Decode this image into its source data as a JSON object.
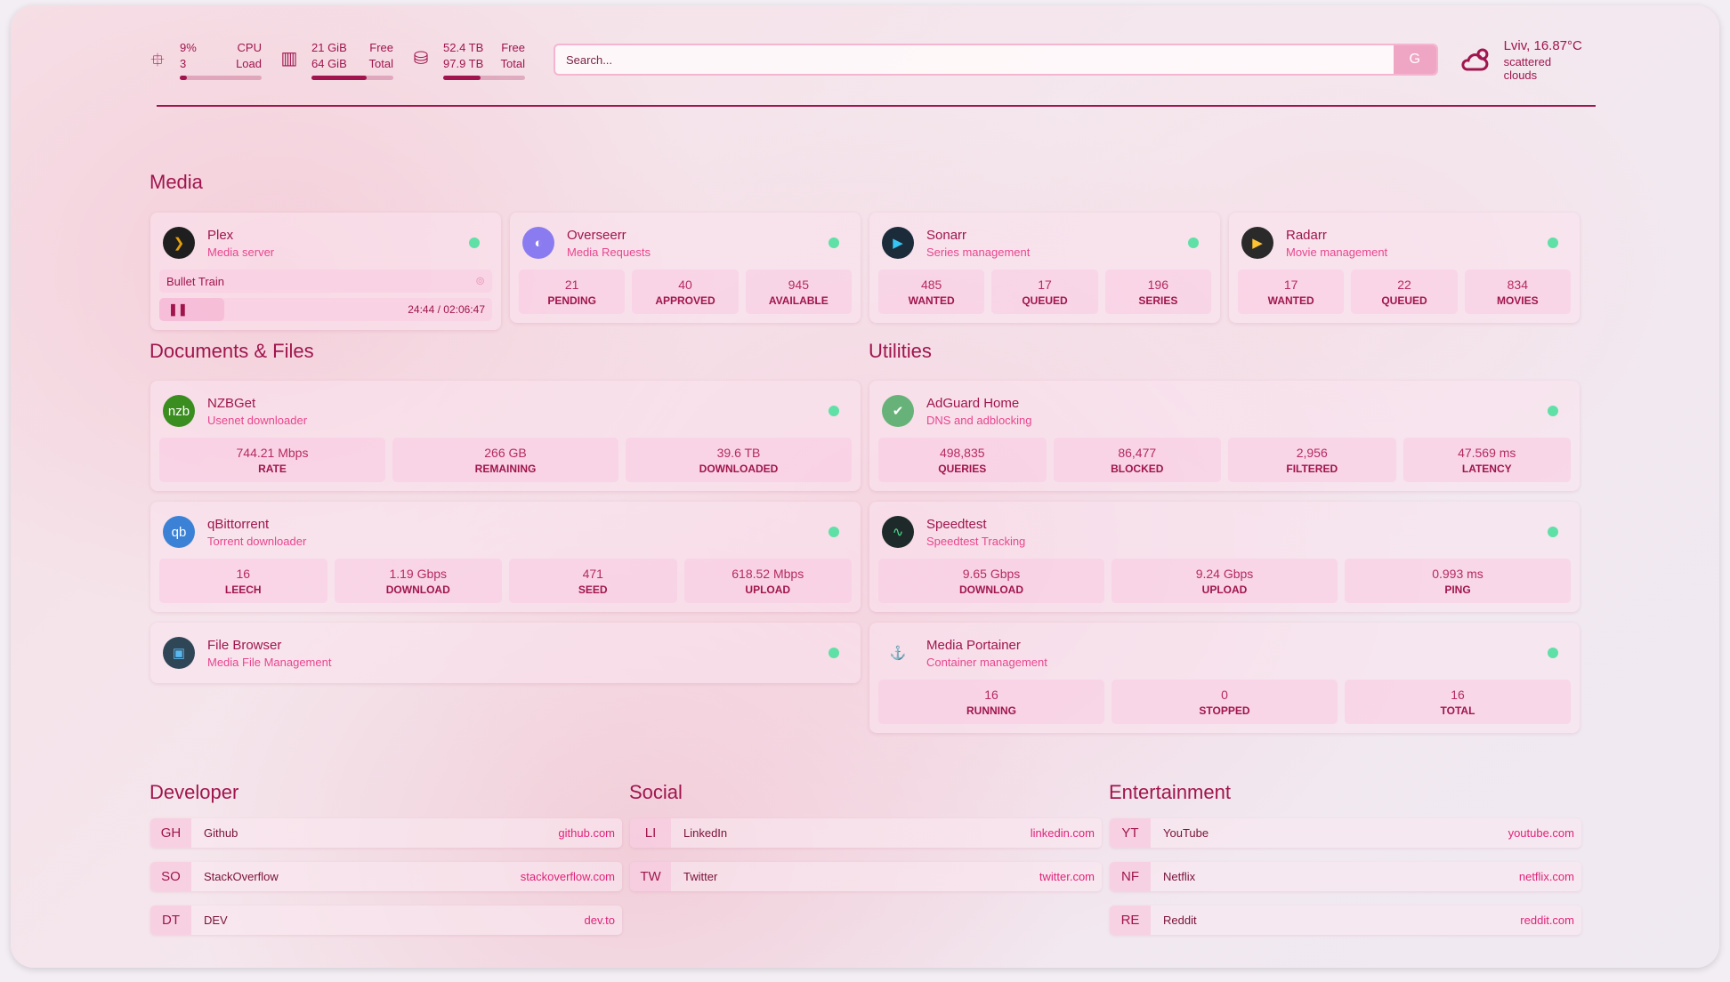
{
  "resources": [
    {
      "icon": "cpu-icon",
      "glyph": "⯐",
      "r1": [
        "9%",
        "CPU"
      ],
      "r2": [
        "3",
        "Load"
      ],
      "fill": 9
    },
    {
      "icon": "memory-icon",
      "glyph": "▥",
      "r1": [
        "21 GiB",
        "Free"
      ],
      "r2": [
        "64 GiB",
        "Total"
      ],
      "fill": 67
    },
    {
      "icon": "disk-icon",
      "glyph": "⛁",
      "r1": [
        "52.4 TB",
        "Free"
      ],
      "r2": [
        "97.9 TB",
        "Total"
      ],
      "fill": 46
    }
  ],
  "search": {
    "placeholder": "Search...",
    "button": "G"
  },
  "weather": {
    "location": "Lviv, 16.87°C",
    "condition": "scattered clouds"
  },
  "sections": {
    "media": "Media",
    "docs": "Documents & Files",
    "utilities": "Utilities",
    "developer": "Developer",
    "social": "Social",
    "entertainment": "Entertainment"
  },
  "colors": {
    "accent": "#a0154d",
    "subtitle": "#e8468f",
    "status_ok": "#5fe0a6"
  },
  "media": [
    {
      "name": "Plex",
      "desc": "Media server",
      "logo": "❯",
      "logo_bg": "#1f1f1f",
      "logo_fg": "#e5a00d",
      "now_playing": {
        "title": "Bullet Train",
        "time": "24:44 / 02:06:47",
        "progress": 19.5
      }
    },
    {
      "name": "Overseerr",
      "desc": "Media Requests",
      "logo": "◐",
      "logo_bg": "#8b7bf0",
      "logo_fg": "#fff",
      "stats": [
        {
          "v": "21",
          "l": "PENDING"
        },
        {
          "v": "40",
          "l": "APPROVED"
        },
        {
          "v": "945",
          "l": "AVAILABLE"
        }
      ]
    },
    {
      "name": "Sonarr",
      "desc": "Series management",
      "logo": "▶",
      "logo_bg": "#1b2b3a",
      "logo_fg": "#35c5f4",
      "stats": [
        {
          "v": "485",
          "l": "WANTED"
        },
        {
          "v": "17",
          "l": "QUEUED"
        },
        {
          "v": "196",
          "l": "SERIES"
        }
      ]
    },
    {
      "name": "Radarr",
      "desc": "Movie management",
      "logo": "▶",
      "logo_bg": "#2a2a2a",
      "logo_fg": "#ffc230",
      "stats": [
        {
          "v": "17",
          "l": "WANTED"
        },
        {
          "v": "22",
          "l": "QUEUED"
        },
        {
          "v": "834",
          "l": "MOVIES"
        }
      ]
    }
  ],
  "docs": [
    {
      "name": "NZBGet",
      "desc": "Usenet downloader",
      "logo": "nzb",
      "logo_bg": "#3a8d1f",
      "logo_fg": "#fff",
      "stats": [
        {
          "v": "744.21 Mbps",
          "l": "RATE"
        },
        {
          "v": "266 GB",
          "l": "REMAINING"
        },
        {
          "v": "39.6 TB",
          "l": "DOWNLOADED"
        }
      ]
    },
    {
      "name": "qBittorrent",
      "desc": "Torrent downloader",
      "logo": "qb",
      "logo_bg": "#3b82d6",
      "logo_fg": "#fff",
      "stats": [
        {
          "v": "16",
          "l": "LEECH"
        },
        {
          "v": "1.19 Gbps",
          "l": "DOWNLOAD"
        },
        {
          "v": "471",
          "l": "SEED"
        },
        {
          "v": "618.52 Mbps",
          "l": "UPLOAD"
        }
      ]
    },
    {
      "name": "File Browser",
      "desc": "Media File Management",
      "logo": "▣",
      "logo_bg": "#2f4656",
      "logo_fg": "#5ab8f0"
    }
  ],
  "utilities": [
    {
      "name": "AdGuard Home",
      "desc": "DNS and adblocking",
      "logo": "✔",
      "logo_bg": "#67b279",
      "logo_fg": "#fff",
      "stats": [
        {
          "v": "498,835",
          "l": "QUERIES"
        },
        {
          "v": "86,477",
          "l": "BLOCKED"
        },
        {
          "v": "2,956",
          "l": "FILTERED"
        },
        {
          "v": "47.569 ms",
          "l": "LATENCY"
        }
      ]
    },
    {
      "name": "Speedtest",
      "desc": "Speedtest Tracking",
      "logo": "∿",
      "logo_bg": "#1e2a2a",
      "logo_fg": "#4ee08f",
      "stats": [
        {
          "v": "9.65 Gbps",
          "l": "DOWNLOAD"
        },
        {
          "v": "9.24 Gbps",
          "l": "UPLOAD"
        },
        {
          "v": "0.993 ms",
          "l": "PING"
        }
      ]
    },
    {
      "name": "Media Portainer",
      "desc": "Container management",
      "logo": "⚓",
      "logo_bg": "transparent",
      "logo_fg": "#13bef9",
      "stats": [
        {
          "v": "16",
          "l": "RUNNING"
        },
        {
          "v": "0",
          "l": "STOPPED"
        },
        {
          "v": "16",
          "l": "TOTAL"
        }
      ]
    }
  ],
  "developer": [
    {
      "ab": "GH",
      "name": "Github",
      "url": "github.com"
    },
    {
      "ab": "SO",
      "name": "StackOverflow",
      "url": "stackoverflow.com"
    },
    {
      "ab": "DT",
      "name": "DEV",
      "url": "dev.to"
    }
  ],
  "social": [
    {
      "ab": "LI",
      "name": "LinkedIn",
      "url": "linkedin.com"
    },
    {
      "ab": "TW",
      "name": "Twitter",
      "url": "twitter.com"
    }
  ],
  "entertainment": [
    {
      "ab": "YT",
      "name": "YouTube",
      "url": "youtube.com"
    },
    {
      "ab": "NF",
      "name": "Netflix",
      "url": "netflix.com"
    },
    {
      "ab": "RE",
      "name": "Reddit",
      "url": "reddit.com"
    }
  ]
}
